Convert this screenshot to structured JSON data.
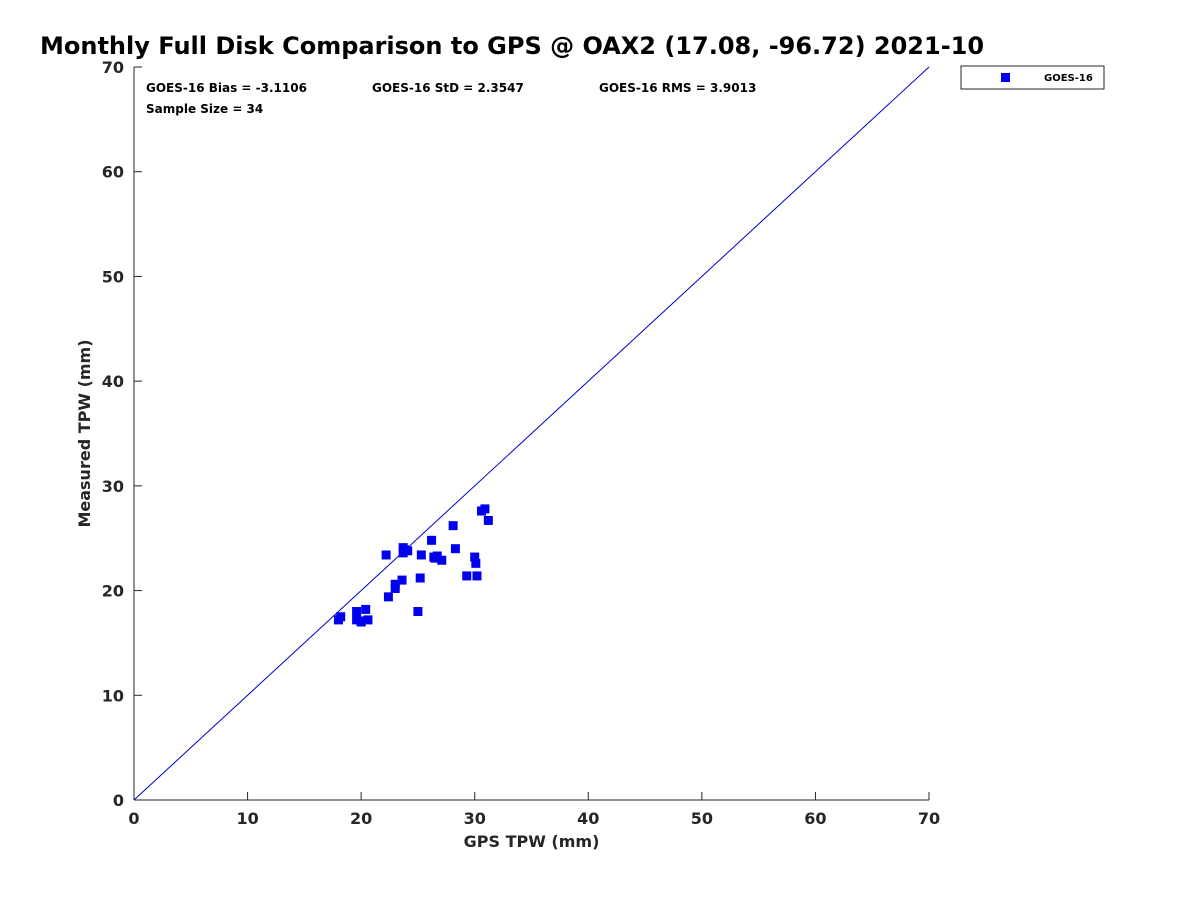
{
  "chart_data": {
    "type": "scatter",
    "title": "Monthly Full Disk Comparison to GPS @ OAX2 (17.08, -96.72) 2021-10",
    "xlabel": "GPS TPW (mm)",
    "ylabel": "Measured TPW (mm)",
    "xlim": [
      0,
      70
    ],
    "ylim": [
      0,
      70
    ],
    "x_ticks": [
      "0",
      "10",
      "20",
      "30",
      "40",
      "50",
      "60",
      "70"
    ],
    "y_ticks": [
      "0",
      "10",
      "20",
      "30",
      "40",
      "50",
      "60",
      "70"
    ],
    "grid": false,
    "legend_placement": "outside-top-right",
    "stats": {
      "bias": "GOES-16 Bias = -3.1106",
      "std": "GOES-16 StD = 2.3547",
      "rms": "GOES-16 RMS = 3.9013",
      "sample_size": "Sample Size = 34"
    },
    "reference_line": {
      "type": "identity",
      "from": [
        0,
        0
      ],
      "to": [
        70,
        70
      ],
      "color": "#0000cc"
    },
    "series": [
      {
        "name": "GOES-16",
        "color": "#0000ee",
        "marker": "square",
        "points": [
          [
            18.0,
            17.2
          ],
          [
            18.2,
            17.5
          ],
          [
            19.6,
            17.2
          ],
          [
            19.6,
            18.0
          ],
          [
            20.0,
            17.0
          ],
          [
            20.4,
            18.2
          ],
          [
            20.6,
            17.2
          ],
          [
            22.2,
            23.4
          ],
          [
            22.4,
            19.4
          ],
          [
            23.0,
            20.6
          ],
          [
            23.0,
            20.2
          ],
          [
            23.6,
            21.0
          ],
          [
            23.7,
            24.1
          ],
          [
            23.7,
            23.6
          ],
          [
            24.1,
            23.8
          ],
          [
            25.0,
            18.0
          ],
          [
            25.2,
            21.2
          ],
          [
            25.3,
            23.4
          ],
          [
            26.2,
            24.8
          ],
          [
            26.4,
            23.2
          ],
          [
            26.7,
            23.3
          ],
          [
            27.1,
            22.9
          ],
          [
            28.1,
            26.2
          ],
          [
            28.3,
            24.0
          ],
          [
            29.3,
            21.4
          ],
          [
            30.0,
            23.2
          ],
          [
            30.1,
            22.6
          ],
          [
            30.2,
            21.4
          ],
          [
            30.6,
            27.6
          ],
          [
            30.9,
            27.8
          ],
          [
            31.2,
            26.7
          ],
          [
            20.0,
            17.1
          ],
          [
            23.8,
            23.9
          ],
          [
            26.5,
            23.1
          ]
        ]
      }
    ]
  }
}
